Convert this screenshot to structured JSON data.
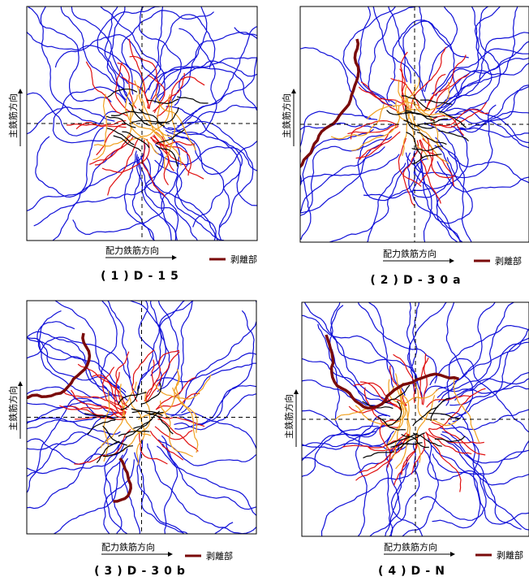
{
  "panels": [
    {
      "caption": "(1)D-15",
      "y_axis_label": "主鉄筋方向",
      "x_axis_label": "配力鉄筋方向",
      "legend_label": "剥離部"
    },
    {
      "caption": "(2)D-30a",
      "y_axis_label": "主鉄筋方向",
      "x_axis_label": "配力鉄筋方向",
      "legend_label": "剥離部"
    },
    {
      "caption": "(3)D-30b",
      "y_axis_label": "主鉄筋方向",
      "x_axis_label": "配力鉄筋方向",
      "legend_label": "剥離部"
    },
    {
      "caption": "(4)D-N",
      "y_axis_label": "主鉄筋方向",
      "x_axis_label": "配力鉄筋方向",
      "legend_label": "剥離部"
    }
  ]
}
